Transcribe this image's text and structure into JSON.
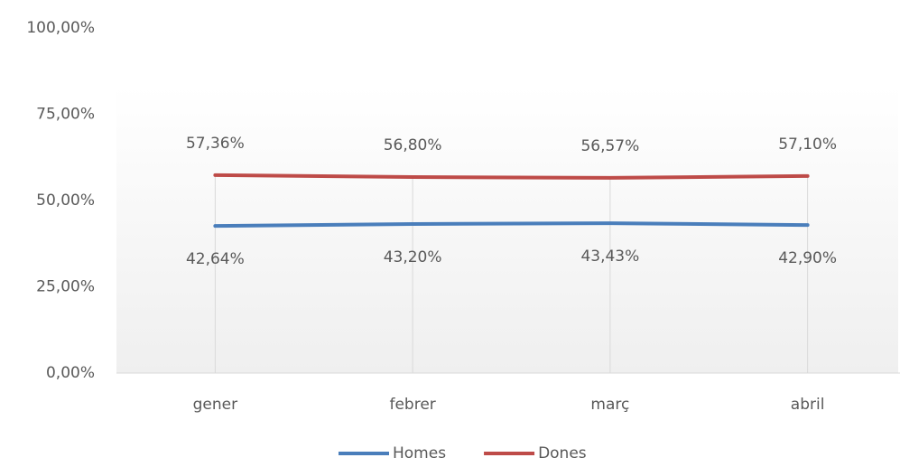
{
  "chart_data": {
    "type": "line",
    "categories": [
      "gener",
      "febrer",
      "març",
      "abril"
    ],
    "series": [
      {
        "name": "Homes",
        "color": "#4a7ebb",
        "values": [
          42.64,
          43.2,
          43.43,
          42.9
        ],
        "value_labels": [
          "42,64%",
          "43,20%",
          "43,43%",
          "42,90%"
        ],
        "label_position": "below"
      },
      {
        "name": "Dones",
        "color": "#be4b48",
        "values": [
          57.36,
          56.8,
          56.57,
          57.1
        ],
        "value_labels": [
          "57,36%",
          "56,80%",
          "56,57%",
          "57,10%"
        ],
        "label_position": "above"
      }
    ],
    "ylim": [
      0,
      100
    ],
    "yticks": [
      {
        "value": 0,
        "label": "0,00%"
      },
      {
        "value": 25,
        "label": "25,00%"
      },
      {
        "value": 50,
        "label": "50,00%"
      },
      {
        "value": 75,
        "label": "75,00%"
      },
      {
        "value": 100,
        "label": "100,00%"
      }
    ],
    "legend": "bottom"
  }
}
